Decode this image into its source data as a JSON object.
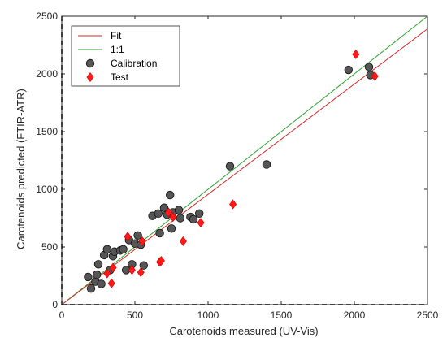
{
  "chart_data": {
    "type": "scatter",
    "xlabel": "Carotenoids measured (UV-Vis)",
    "ylabel": "Carotenoids predicted (FTIR-ATR)",
    "xlim": [
      0,
      2500
    ],
    "ylim": [
      0,
      2500
    ],
    "xticks": [
      "0",
      "500",
      "1000",
      "1500",
      "2000",
      "2500"
    ],
    "yticks": [
      "0",
      "500",
      "1000",
      "1500",
      "2000",
      "2500"
    ],
    "grid": false,
    "legend_position": "top-left",
    "legend": [
      {
        "label": "Fit",
        "kind": "line",
        "color": "#d62728"
      },
      {
        "label": "1:1",
        "kind": "line",
        "color": "#2ca02c"
      },
      {
        "label": "Calibration",
        "kind": "circle",
        "color": "#555555"
      },
      {
        "label": "Test",
        "kind": "diamond",
        "color": "#ff1a1a"
      }
    ],
    "lines": {
      "fit": {
        "x": [
          0,
          2500
        ],
        "y": [
          0,
          2390
        ]
      },
      "one_to_one": {
        "x": [
          0,
          2500
        ],
        "y": [
          0,
          2500
        ]
      }
    },
    "series": [
      {
        "name": "Calibration",
        "marker": "circle",
        "color": "#555555",
        "x": [
          180,
          200,
          230,
          240,
          250,
          270,
          290,
          310,
          330,
          350,
          360,
          400,
          420,
          440,
          460,
          480,
          500,
          520,
          540,
          560,
          620,
          660,
          670,
          700,
          720,
          740,
          750,
          760,
          800,
          810,
          880,
          900,
          940,
          1150,
          1400,
          1960,
          2100,
          2110
        ],
        "y": [
          240,
          140,
          200,
          260,
          350,
          180,
          430,
          480,
          300,
          420,
          460,
          470,
          480,
          300,
          560,
          350,
          530,
          600,
          520,
          340,
          770,
          790,
          620,
          840,
          780,
          950,
          660,
          800,
          820,
          750,
          760,
          740,
          790,
          1200,
          1215,
          2035,
          2060,
          1990
        ]
      },
      {
        "name": "Test",
        "marker": "diamond",
        "color": "#ff1a1a",
        "x": [
          310,
          340,
          350,
          450,
          480,
          540,
          550,
          670,
          680,
          730,
          760,
          830,
          950,
          1170,
          2010,
          2140
        ],
        "y": [
          270,
          185,
          320,
          590,
          300,
          280,
          550,
          370,
          380,
          800,
          760,
          550,
          710,
          870,
          2170,
          1980
        ]
      }
    ]
  }
}
